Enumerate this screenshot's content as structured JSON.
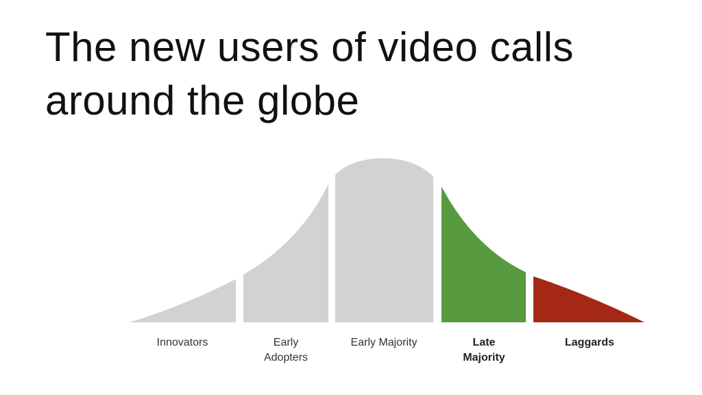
{
  "title": "The new users of video calls around the globe",
  "segments": [
    {
      "label_lines": [
        "Innovators"
      ],
      "color": "#d3d2d3",
      "bold": false
    },
    {
      "label_lines": [
        "Early",
        "Adopters"
      ],
      "color": "#d3d2d3",
      "bold": false
    },
    {
      "label_lines": [
        "Early Majority"
      ],
      "color": "#d3d2d3",
      "bold": false
    },
    {
      "label_lines": [
        "Late",
        "Majority"
      ],
      "color": "#579a40",
      "bold": true
    },
    {
      "label_lines": [
        "Laggards"
      ],
      "color": "#a42815",
      "bold": true
    }
  ]
}
